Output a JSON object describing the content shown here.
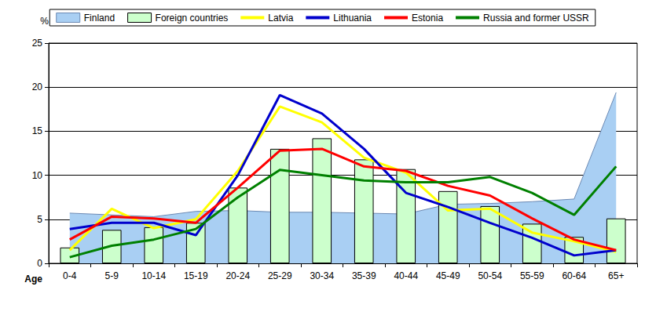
{
  "chart_data": {
    "type": "line",
    "x_label": "Age",
    "y_label": "%",
    "categories": [
      "0-4",
      "5-9",
      "10-14",
      "15-19",
      "20-24",
      "25-29",
      "30-34",
      "35-39",
      "40-44",
      "45-49",
      "50-54",
      "55-59",
      "60-64",
      "65+"
    ],
    "ylim": [
      0,
      25
    ],
    "yticks": [
      0,
      5,
      10,
      15,
      20,
      25
    ],
    "grid": true,
    "legend": "top",
    "series": [
      {
        "name": "Finland",
        "type": "area",
        "color": "#a9cff3",
        "values": [
          5.7,
          5.5,
          5.3,
          5.9,
          6.0,
          5.8,
          5.8,
          5.7,
          5.6,
          6.7,
          6.8,
          7.0,
          7.3,
          19.4
        ]
      },
      {
        "name": "Foreign countries",
        "type": "bar",
        "color": "#ccffcc",
        "values": [
          1.8,
          3.8,
          4.1,
          4.6,
          8.6,
          13.0,
          14.2,
          11.8,
          10.7,
          8.2,
          6.5,
          4.5,
          3.0,
          5.1
        ]
      },
      {
        "name": "Latvia",
        "type": "line",
        "color": "#ffff00",
        "values": [
          1.5,
          6.2,
          4.0,
          5.0,
          10.5,
          17.8,
          16.0,
          12.0,
          10.3,
          6.0,
          6.2,
          3.5,
          2.5,
          1.3
        ]
      },
      {
        "name": "Lithuania",
        "type": "line",
        "color": "#0000cc",
        "values": [
          3.9,
          4.6,
          4.6,
          3.2,
          10.0,
          19.1,
          17.0,
          13.0,
          8.0,
          6.4,
          4.6,
          2.9,
          0.9,
          1.5
        ]
      },
      {
        "name": "Estonia",
        "type": "line",
        "color": "#ff0000",
        "values": [
          2.7,
          5.3,
          5.1,
          4.6,
          8.6,
          12.8,
          13.0,
          11.0,
          10.5,
          8.8,
          7.7,
          5.1,
          2.7,
          1.5
        ]
      },
      {
        "name": "Russia and former USSR",
        "type": "line",
        "color": "#008000",
        "values": [
          0.7,
          2.0,
          2.7,
          3.9,
          7.5,
          10.6,
          10.0,
          9.4,
          9.2,
          9.2,
          9.8,
          8.0,
          5.5,
          11.0
        ]
      }
    ]
  }
}
